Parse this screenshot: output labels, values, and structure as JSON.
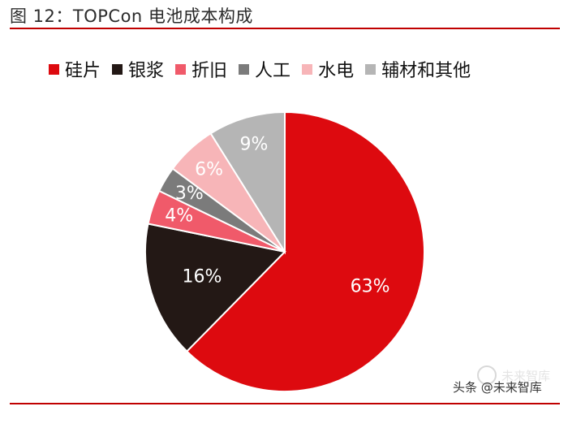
{
  "title": "图 12：TOPCon 电池成本构成",
  "watermark": {
    "line": "头条 @未来智库",
    "badge": "未来智库"
  },
  "chart_data": {
    "type": "pie",
    "title": "",
    "start_angle_deg": 0,
    "direction": "clockwise",
    "legend_position": "top",
    "slices": [
      {
        "label": "硅片",
        "value": 63,
        "display": "63%",
        "color": "#dd0a0f",
        "text_color": "#ffffff"
      },
      {
        "label": "银浆",
        "value": 16,
        "display": "16%",
        "color": "#231815",
        "text_color": "#ffffff"
      },
      {
        "label": "折旧",
        "value": 4,
        "display": "4%",
        "color": "#f05a6a",
        "text_color": "#ffffff"
      },
      {
        "label": "人工",
        "value": 3,
        "display": "3%",
        "color": "#7b7b7b",
        "text_color": "#ffffff"
      },
      {
        "label": "水电",
        "value": 6,
        "display": "6%",
        "color": "#f7b5b8",
        "text_color": "#ffffff"
      },
      {
        "label": "辅材和其他",
        "value": 9,
        "display": "9%",
        "color": "#b5b5b5",
        "text_color": "#ffffff"
      }
    ]
  }
}
